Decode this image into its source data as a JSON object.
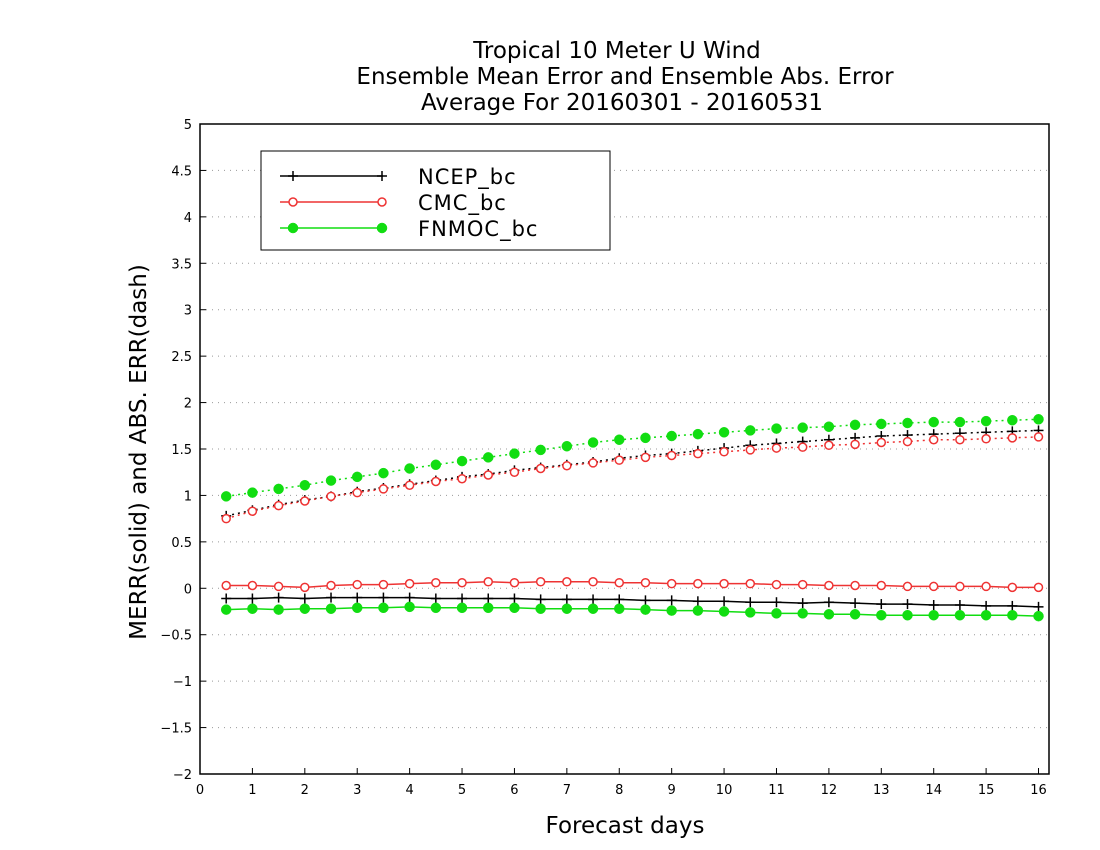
{
  "chart_data": {
    "type": "line",
    "title": [
      "Tropical 10 Meter U Wind",
      "Ensemble Mean Error and Ensemble Abs. Error",
      "Average For 20160301 - 20160531"
    ],
    "xlabel": "Forecast days",
    "ylabel": "MERR(solid) and ABS. ERR(dash)",
    "xlim": [
      0,
      16.2
    ],
    "ylim": [
      -2,
      5
    ],
    "xticks": [
      0,
      1,
      2,
      3,
      4,
      5,
      6,
      7,
      8,
      9,
      10,
      11,
      12,
      13,
      14,
      15,
      16
    ],
    "yticks": [
      -2,
      -1.5,
      -1,
      -0.5,
      0,
      0.5,
      1,
      1.5,
      2,
      2.5,
      3,
      3.5,
      4,
      4.5,
      5
    ],
    "ytick_labels": [
      "−2",
      "−1.5",
      "−1",
      "−0.5",
      "0",
      "0.5",
      "1",
      "1.5",
      "2",
      "2.5",
      "3",
      "3.5",
      "4",
      "4.5",
      "5"
    ],
    "grid": {
      "horizontal": true,
      "vertical": false,
      "style": "dotted"
    },
    "legend_position": "top-left",
    "x": [
      0.5,
      1,
      1.5,
      2,
      2.5,
      3,
      3.5,
      4,
      4.5,
      5,
      5.5,
      6,
      6.5,
      7,
      7.5,
      8,
      8.5,
      9,
      9.5,
      10,
      10.5,
      11,
      11.5,
      12,
      12.5,
      13,
      13.5,
      14,
      14.5,
      15,
      15.5,
      16
    ],
    "series": [
      {
        "name": "NCEP_bc",
        "color": "#000000",
        "marker": "plus",
        "mean_error": [
          -0.11,
          -0.11,
          -0.1,
          -0.11,
          -0.1,
          -0.1,
          -0.1,
          -0.1,
          -0.11,
          -0.11,
          -0.11,
          -0.11,
          -0.12,
          -0.12,
          -0.12,
          -0.12,
          -0.13,
          -0.13,
          -0.14,
          -0.14,
          -0.15,
          -0.15,
          -0.16,
          -0.15,
          -0.16,
          -0.17,
          -0.17,
          -0.18,
          -0.18,
          -0.19,
          -0.19,
          -0.2
        ],
        "abs_error": [
          0.78,
          0.84,
          0.9,
          0.95,
          0.99,
          1.04,
          1.08,
          1.12,
          1.16,
          1.2,
          1.23,
          1.27,
          1.3,
          1.33,
          1.36,
          1.4,
          1.43,
          1.45,
          1.48,
          1.51,
          1.54,
          1.56,
          1.58,
          1.6,
          1.62,
          1.64,
          1.65,
          1.66,
          1.67,
          1.68,
          1.69,
          1.7
        ]
      },
      {
        "name": "CMC_bc",
        "color": "#ee3333",
        "marker": "open-circle",
        "mean_error": [
          0.03,
          0.03,
          0.02,
          0.01,
          0.03,
          0.04,
          0.04,
          0.05,
          0.06,
          0.06,
          0.07,
          0.06,
          0.07,
          0.07,
          0.07,
          0.06,
          0.06,
          0.05,
          0.05,
          0.05,
          0.05,
          0.04,
          0.04,
          0.03,
          0.03,
          0.03,
          0.02,
          0.02,
          0.02,
          0.02,
          0.01,
          0.01
        ],
        "abs_error": [
          0.75,
          0.83,
          0.89,
          0.94,
          0.99,
          1.03,
          1.07,
          1.11,
          1.15,
          1.18,
          1.22,
          1.25,
          1.29,
          1.32,
          1.35,
          1.38,
          1.41,
          1.43,
          1.45,
          1.47,
          1.49,
          1.51,
          1.52,
          1.54,
          1.55,
          1.57,
          1.58,
          1.6,
          1.6,
          1.61,
          1.62,
          1.63
        ]
      },
      {
        "name": "FNMOC_bc",
        "color": "#11dd11",
        "marker": "filled-circle",
        "mean_error": [
          -0.23,
          -0.22,
          -0.23,
          -0.22,
          -0.22,
          -0.21,
          -0.21,
          -0.2,
          -0.21,
          -0.21,
          -0.21,
          -0.21,
          -0.22,
          -0.22,
          -0.22,
          -0.22,
          -0.23,
          -0.24,
          -0.24,
          -0.25,
          -0.26,
          -0.27,
          -0.27,
          -0.28,
          -0.28,
          -0.29,
          -0.29,
          -0.29,
          -0.29,
          -0.29,
          -0.29,
          -0.3
        ],
        "abs_error": [
          0.99,
          1.03,
          1.07,
          1.11,
          1.16,
          1.2,
          1.24,
          1.29,
          1.33,
          1.37,
          1.41,
          1.45,
          1.49,
          1.53,
          1.57,
          1.6,
          1.62,
          1.64,
          1.66,
          1.68,
          1.7,
          1.72,
          1.73,
          1.74,
          1.76,
          1.77,
          1.78,
          1.79,
          1.79,
          1.8,
          1.81,
          1.82
        ]
      }
    ]
  }
}
